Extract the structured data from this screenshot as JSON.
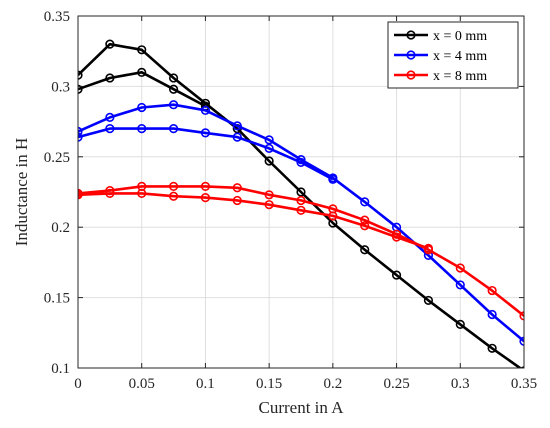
{
  "chart_data": {
    "type": "line",
    "xlabel": "Current in A",
    "ylabel": "Inductance in H",
    "xlim": [
      0,
      0.35
    ],
    "ylim": [
      0.1,
      0.35
    ],
    "xticks": [
      0,
      0.05,
      0.1,
      0.15,
      0.2,
      0.25,
      0.3,
      0.35
    ],
    "yticks": [
      0.1,
      0.15,
      0.2,
      0.25,
      0.3,
      0.35
    ],
    "xtick_labels": [
      "0",
      "0.05",
      "0.1",
      "0.15",
      "0.2",
      "0.25",
      "0.3",
      "0.35"
    ],
    "ytick_labels": [
      "0.1",
      "0.15",
      "0.2",
      "0.25",
      "0.3",
      "0.35"
    ],
    "grid": true,
    "legend_position": "top-right",
    "series": [
      {
        "name": "x = 0 mm",
        "color": "#000000",
        "branches": [
          {
            "x": [
              0,
              0.025,
              0.05,
              0.075,
              0.1,
              0.125,
              0.15,
              0.175,
              0.2,
              0.225,
              0.25,
              0.275,
              0.3,
              0.325,
              0.35
            ],
            "y": [
              0.308,
              0.33,
              0.326,
              0.306,
              0.288,
              0.27,
              0.247,
              0.225,
              0.203,
              0.184,
              0.166,
              0.148,
              0.131,
              0.114,
              0.098
            ]
          },
          {
            "x": [
              0,
              0.025,
              0.05,
              0.075,
              0.1
            ],
            "y": [
              0.298,
              0.306,
              0.31,
              0.298,
              0.286
            ]
          }
        ]
      },
      {
        "name": "x = 4 mm",
        "color": "#0000ff",
        "branches": [
          {
            "x": [
              0,
              0.025,
              0.05,
              0.075,
              0.1,
              0.125,
              0.15,
              0.175,
              0.2,
              0.225,
              0.25,
              0.275,
              0.3,
              0.325,
              0.35
            ],
            "y": [
              0.268,
              0.278,
              0.285,
              0.287,
              0.283,
              0.272,
              0.262,
              0.248,
              0.235,
              0.218,
              0.2,
              0.18,
              0.159,
              0.138,
              0.119
            ]
          },
          {
            "x": [
              0,
              0.025,
              0.05,
              0.075,
              0.1,
              0.125,
              0.15,
              0.175,
              0.2
            ],
            "y": [
              0.264,
              0.27,
              0.27,
              0.27,
              0.267,
              0.264,
              0.256,
              0.246,
              0.234
            ]
          }
        ]
      },
      {
        "name": "x = 8 mm",
        "color": "#ff0000",
        "branches": [
          {
            "x": [
              0,
              0.025,
              0.05,
              0.075,
              0.1,
              0.125,
              0.15,
              0.175,
              0.2,
              0.225,
              0.25,
              0.275,
              0.3,
              0.325,
              0.35
            ],
            "y": [
              0.224,
              0.226,
              0.229,
              0.229,
              0.229,
              0.228,
              0.223,
              0.219,
              0.213,
              0.205,
              0.195,
              0.184,
              0.171,
              0.155,
              0.137
            ]
          },
          {
            "x": [
              0,
              0.025,
              0.05,
              0.075,
              0.1,
              0.125,
              0.15,
              0.175,
              0.2,
              0.225,
              0.25,
              0.275
            ],
            "y": [
              0.223,
              0.224,
              0.224,
              0.222,
              0.221,
              0.219,
              0.216,
              0.212,
              0.208,
              0.201,
              0.193,
              0.185
            ]
          }
        ]
      }
    ]
  }
}
